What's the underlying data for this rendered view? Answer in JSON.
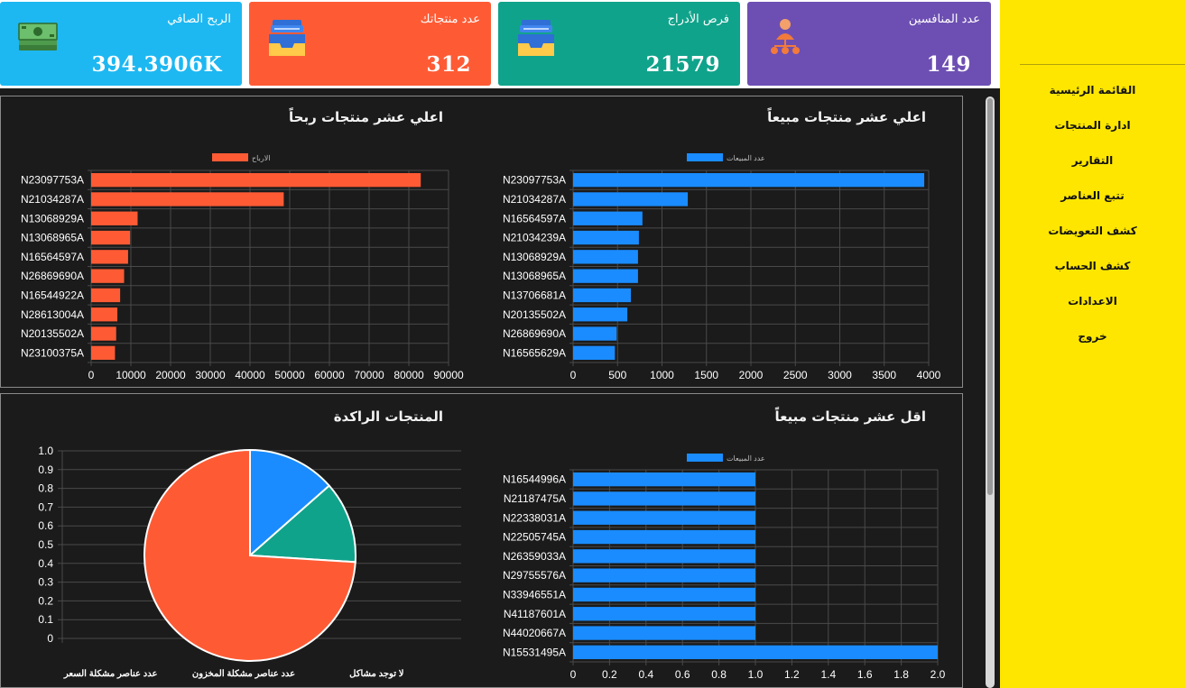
{
  "cards": [
    {
      "label": "الربح الصافي",
      "value": "394.3906K",
      "color": "#1db8f2",
      "icon": "money-icon"
    },
    {
      "label": "عدد منتجاتك",
      "value": "312",
      "color": "#fe5b35",
      "icon": "inbox-tray-icon"
    },
    {
      "label": "فرص الأدراج",
      "value": "21579",
      "color": "#10a38b",
      "icon": "inbox-tray-icon"
    },
    {
      "label": "عدد المنافسين",
      "value": "149",
      "color": "#6d4fb3",
      "icon": "people-network-icon"
    }
  ],
  "sidebar": {
    "items": [
      {
        "label": "القائمة الرئيسية"
      },
      {
        "label": "ادارة المنتجات"
      },
      {
        "label": "التقارير"
      },
      {
        "label": "تتبع العناصر"
      },
      {
        "label": "كشف التعويضات"
      },
      {
        "label": "كشف الحساب"
      },
      {
        "label": "الاعدادات"
      },
      {
        "label": "خروج"
      }
    ]
  },
  "panels": {
    "top_sales_title": "اعلي عشر منتجات مبيعاً",
    "top_profit_title": "اعلي عشر منتجات ربحاً",
    "low_sales_title": "اقل عشر منتجات مبيعاً",
    "stagnant_title": "المنتجات الراكدة"
  },
  "chart_data": [
    {
      "type": "bar",
      "orientation": "horizontal",
      "title": "اعلي عشر منتجات ربحاً",
      "legend": "الارباح",
      "color": "#fe5b35",
      "categories": [
        "N23097753A",
        "N21034287A",
        "N13068929A",
        "N13068965A",
        "N16564597A",
        "N26869690A",
        "N16544922A",
        "N28613004A",
        "N20135502A",
        "N23100375A"
      ],
      "values": [
        83000,
        48500,
        11700,
        9800,
        9300,
        8300,
        7300,
        6600,
        6300,
        6000
      ],
      "xlim": [
        0,
        90000
      ],
      "xticks": [
        "0",
        "10000",
        "20000",
        "30000",
        "40000",
        "50000",
        "60000",
        "70000",
        "80000",
        "90000"
      ]
    },
    {
      "type": "bar",
      "orientation": "horizontal",
      "title": "اعلي عشر منتجات مبيعاً",
      "legend": "عدد المبيعات",
      "color": "#1a8cff",
      "categories": [
        "N23097753A",
        "N21034287A",
        "N16564597A",
        "N21034239A",
        "N13068929A",
        "N13068965A",
        "N13706681A",
        "N20135502A",
        "N26869690A",
        "N16565629A"
      ],
      "values": [
        3950,
        1290,
        780,
        740,
        730,
        730,
        650,
        610,
        490,
        470
      ],
      "xlim": [
        0,
        4000
      ],
      "xticks": [
        "0",
        "500",
        "1000",
        "1500",
        "2000",
        "2500",
        "3000",
        "3500",
        "4000"
      ]
    },
    {
      "type": "bar",
      "orientation": "horizontal",
      "title": "اقل عشر منتجات مبيعاً",
      "legend": "عدد المبيعات",
      "color": "#1a8cff",
      "categories": [
        "N16544996A",
        "N21187475A",
        "N22338031A",
        "N22505745A",
        "N26359033A",
        "N29755576A",
        "N33946551A",
        "N41187601A",
        "N44020667A",
        "N15531495A"
      ],
      "values": [
        1,
        1,
        1,
        1,
        1,
        1,
        1,
        1,
        1,
        2
      ],
      "xlim": [
        0,
        2
      ],
      "xticks": [
        "0",
        "0.2",
        "0.4",
        "0.6",
        "0.8",
        "1.0",
        "1.2",
        "1.4",
        "1.6",
        "1.8",
        "2.0"
      ]
    },
    {
      "type": "pie",
      "title": "المنتجات الراكدة",
      "yticks": [
        "1.0",
        "0.9",
        "0.8",
        "0.7",
        "0.6",
        "0.5",
        "0.4",
        "0.3",
        "0.2",
        "0.1",
        "0"
      ],
      "categories": [
        "عدد عناصر مشكلة السعر",
        "عدد عناصر مشكلة المخزون",
        "لا توجد مشاكل"
      ],
      "slices": [
        {
          "value": 0.74,
          "color": "#fe5b35"
        },
        {
          "value": 0.125,
          "color": "#10a38b"
        },
        {
          "value": 0.135,
          "color": "#1a8cff"
        }
      ]
    }
  ]
}
